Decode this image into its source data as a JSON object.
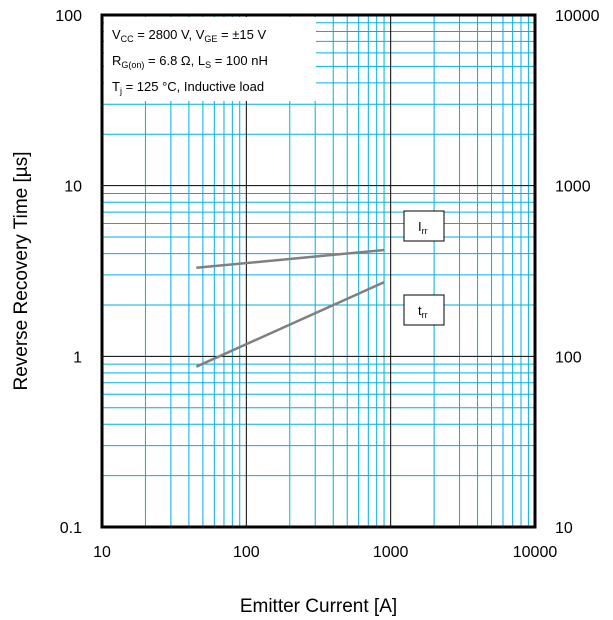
{
  "chart_data": {
    "type": "line",
    "xlabel": "Emitter Current [A]",
    "ylabel": "Reverse Recovery Time [µs]",
    "x_scale": "log",
    "y_scale": "log",
    "y2_scale": "log",
    "xlim": [
      10,
      10000
    ],
    "ylim": [
      0.1,
      100
    ],
    "y2lim": [
      10,
      10000
    ],
    "grid": true,
    "x_ticks": [
      "10",
      "100",
      "1000",
      "10000"
    ],
    "y_ticks": [
      "0.1",
      "1",
      "10",
      "100"
    ],
    "y2_ticks": [
      "10",
      "100",
      "1000",
      "10000"
    ],
    "conditions": [
      {
        "parts": [
          {
            "t": "V"
          },
          {
            "t": "CC",
            "sub": true
          },
          {
            "t": " = 2800 V, V"
          },
          {
            "t": "GE",
            "sub": true
          },
          {
            "t": " = ±15 V"
          }
        ]
      },
      {
        "parts": [
          {
            "t": "R"
          },
          {
            "t": "G(on)",
            "sub": true
          },
          {
            "t": " = 6.8 Ω, L"
          },
          {
            "t": "S",
            "sub": true
          },
          {
            "t": " = 100 nH"
          }
        ]
      },
      {
        "parts": [
          {
            "t": "T"
          },
          {
            "t": "j",
            "sub": true
          },
          {
            "t": " = 125 °C, Inductive load"
          }
        ]
      }
    ],
    "series": [
      {
        "name": "Irr",
        "label_main": "I",
        "label_sub": "rr",
        "axis": "right",
        "x": [
          45,
          900
        ],
        "y": [
          330,
          420
        ]
      },
      {
        "name": "trr",
        "label_main": "t",
        "label_sub": "rr",
        "axis": "left",
        "x": [
          45,
          900
        ],
        "y": [
          0.87,
          2.72
        ]
      }
    ],
    "colors": {
      "grid_minor": "#00b0e0",
      "grid_major": "#000000",
      "series": "#808080",
      "frame": "#000000"
    }
  }
}
